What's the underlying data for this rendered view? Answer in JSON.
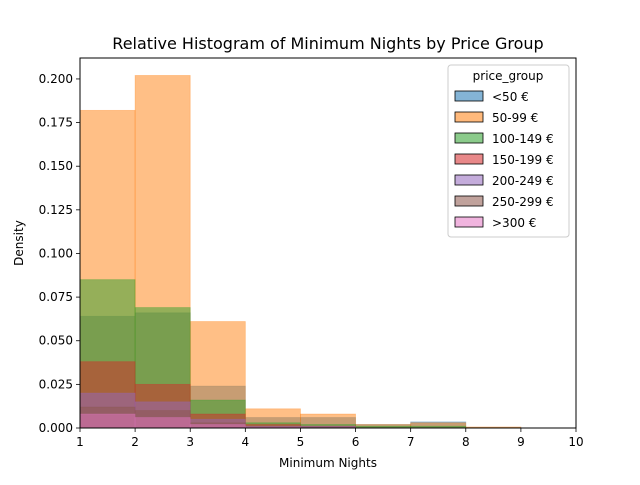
{
  "chart_data": {
    "type": "bar",
    "title": "Relative Histogram of Minimum Nights by Price Group",
    "xlabel": "Minimum Nights",
    "ylabel": "Density",
    "xlim": [
      1,
      10
    ],
    "ylim": [
      0,
      0.212
    ],
    "x_ticks": [
      "1",
      "2",
      "3",
      "4",
      "5",
      "6",
      "7",
      "8",
      "9",
      "10"
    ],
    "y_ticks": [
      "0.000",
      "0.025",
      "0.050",
      "0.075",
      "0.100",
      "0.125",
      "0.150",
      "0.175",
      "0.200"
    ],
    "bins": [
      [
        1,
        2
      ],
      [
        2,
        3
      ],
      [
        3,
        4
      ],
      [
        4,
        5
      ],
      [
        5,
        6
      ],
      [
        6,
        7
      ],
      [
        7,
        8
      ],
      [
        8,
        9
      ],
      [
        9,
        10
      ]
    ],
    "legend_title": "price_group",
    "legend_position": "top-right",
    "series": [
      {
        "name": "<50 €",
        "color": "#1f77b4",
        "values": [
          0.064,
          0.066,
          0.024,
          0.006,
          0.006,
          0.002,
          0.0035,
          0.0003,
          0.0
        ]
      },
      {
        "name": "50-99 €",
        "color": "#ff7f0e",
        "values": [
          0.182,
          0.202,
          0.061,
          0.011,
          0.008,
          0.002,
          0.003,
          0.0006,
          0.0
        ]
      },
      {
        "name": "100-149 €",
        "color": "#2ca02c",
        "values": [
          0.085,
          0.069,
          0.016,
          0.003,
          0.002,
          0.001,
          0.001,
          0.0,
          0.0
        ]
      },
      {
        "name": "150-199 €",
        "color": "#d62728",
        "values": [
          0.038,
          0.025,
          0.008,
          0.002,
          0.001,
          0.0,
          0.0,
          0.0,
          0.0
        ]
      },
      {
        "name": "200-249 €",
        "color": "#9467bd",
        "values": [
          0.02,
          0.015,
          0.005,
          0.001,
          0.001,
          0.0,
          0.0,
          0.0,
          0.0
        ]
      },
      {
        "name": "250-299 €",
        "color": "#8c564b",
        "values": [
          0.012,
          0.01,
          0.003,
          0.0005,
          0.0,
          0.0,
          0.0,
          0.0,
          0.0
        ]
      },
      {
        "name": ">300 €",
        "color": "#e377c2",
        "values": [
          0.008,
          0.006,
          0.002,
          0.0005,
          0.0,
          0.0,
          0.0,
          0.0,
          0.0
        ]
      }
    ]
  }
}
